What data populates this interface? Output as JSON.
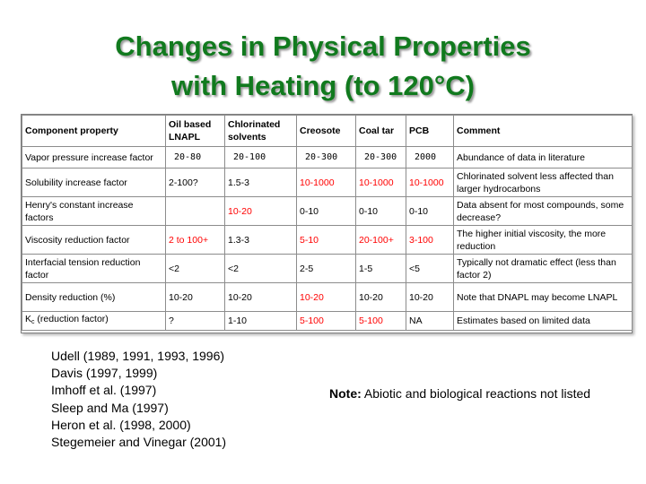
{
  "title": {
    "line1": "Changes in Physical Properties",
    "line2": "with Heating (to 120°C)"
  },
  "table": {
    "headers": [
      "Component property",
      "Oil based LNAPL",
      "Chlorinated solvents",
      "Creosote",
      "Coal tar",
      "PCB",
      "Comment"
    ],
    "rows": [
      {
        "property": "Vapor pressure increase factor",
        "oil_lnapl": "20-80",
        "chlorinated": "20-100",
        "creosote": "20-300",
        "coal_tar": "20-300",
        "pcb": "2000",
        "comment": "Abundance of data in literature"
      },
      {
        "property": "Solubility increase factor",
        "oil_lnapl": "2-100?",
        "chlorinated": "1.5-3",
        "creosote": "10-1000",
        "coal_tar": "10-1000",
        "pcb": "10-1000",
        "comment": "Chlorinated solvent less affected than larger hydrocarbons"
      },
      {
        "property": "Henry's constant increase factors",
        "oil_lnapl": "",
        "chlorinated": "10-20",
        "creosote": "0-10",
        "coal_tar": "0-10",
        "pcb": "0-10",
        "comment": "Data absent for most compounds, some decrease?"
      },
      {
        "property": "Viscosity reduction factor",
        "oil_lnapl": "2 to 100+",
        "chlorinated": "1.3-3",
        "creosote": "5-10",
        "coal_tar": "20-100+",
        "pcb": "3-100",
        "comment": "The higher initial viscosity, the more reduction"
      },
      {
        "property": "Interfacial tension reduction factor",
        "oil_lnapl": "<2",
        "chlorinated": "<2",
        "creosote": "2-5",
        "coal_tar": "1-5",
        "pcb": "<5",
        "comment": "Typically not dramatic effect (less than factor 2)"
      },
      {
        "property": "Density reduction (%)",
        "oil_lnapl": "10-20",
        "chlorinated": "10-20",
        "creosote": "10-20",
        "coal_tar": "10-20",
        "pcb": "10-20",
        "comment": "Note that DNAPL may become LNAPL"
      },
      {
        "property_main": "K",
        "property_sub": "c",
        "property_rest": " (reduction factor)",
        "oil_lnapl": "?",
        "chlorinated": "1-10",
        "creosote": "5-100",
        "coal_tar": "5-100",
        "pcb": "NA",
        "comment": "Estimates based on limited data"
      }
    ]
  },
  "references": [
    "Udell (1989, 1991, 1993, 1996)",
    "Davis (1997, 1999)",
    "Imhoff et al. (1997)",
    "Sleep and Ma (1997)",
    "Heron et al. (1998, 2000)",
    "Stegemeier and Vinegar (2001)"
  ],
  "note": {
    "label": "Note:",
    "text": " Abiotic and biological reactions not listed"
  },
  "colors": {
    "title_green": "#117a1e",
    "highlight_red": "#ff0000"
  }
}
